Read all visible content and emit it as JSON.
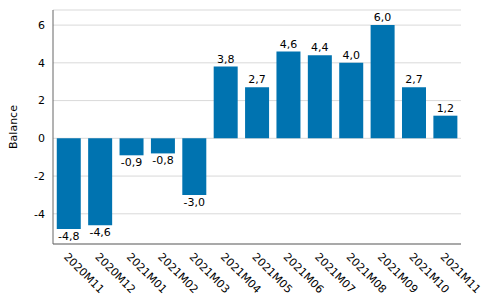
{
  "chart_data": {
    "type": "bar",
    "y_label": "Balance",
    "categories": [
      "2020M11",
      "2020M12",
      "2021M01",
      "2021M02",
      "2021M03",
      "2021M04",
      "2021M05",
      "2021M06",
      "2021M07",
      "2021M08",
      "2021M09",
      "2021M10",
      "2021M11"
    ],
    "values": [
      -4.8,
      -4.6,
      -0.9,
      -0.8,
      -3.0,
      3.8,
      2.7,
      4.6,
      4.4,
      4.0,
      6.0,
      2.7,
      1.2
    ],
    "value_labels": [
      "-4,8",
      "-4,6",
      "-0,9",
      "-0,8",
      "-3,0",
      "3,8",
      "2,7",
      "4,6",
      "4,4",
      "4,0",
      "6,0",
      "2,7",
      "1,2"
    ],
    "color": "#0073b0",
    "ylim": [
      -5.6,
      6.8
    ],
    "yticks": [
      -4,
      -2,
      0,
      2,
      4,
      6
    ],
    "grid": true,
    "data_labels": true
  }
}
